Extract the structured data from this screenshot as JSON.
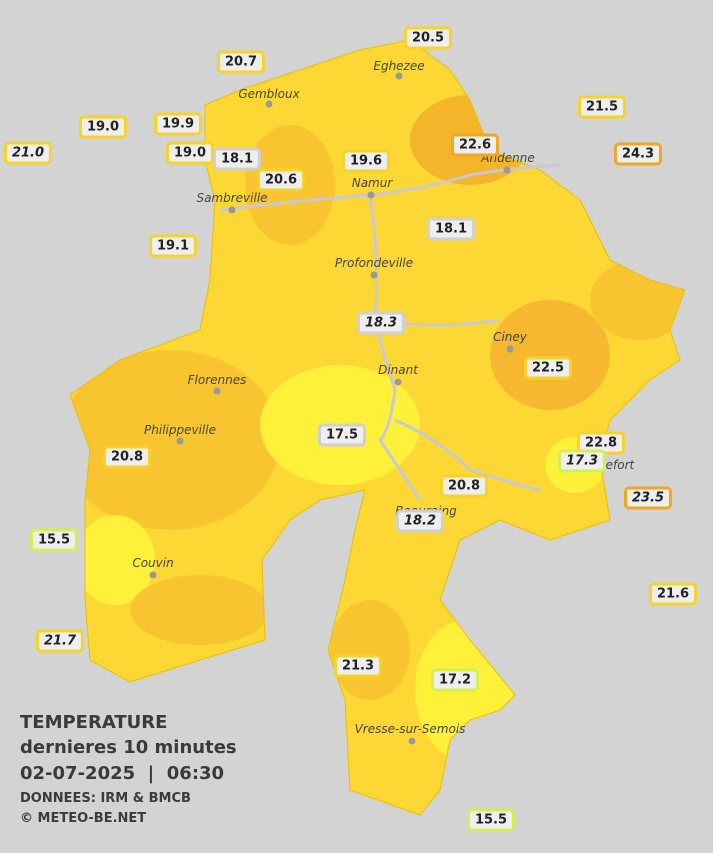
{
  "stations": [
    "20.5",
    "20.7",
    "21.5",
    "19.0",
    "19.9",
    "21.0",
    "19.0",
    "18.1",
    "22.6",
    "24.3",
    "19.6",
    "20.6",
    "18.1",
    "19.1",
    "18.3",
    "22.5",
    "17.5",
    "22.8",
    "17.3",
    "20.8",
    "20.8",
    "23.5",
    "18.2",
    "15.5",
    "21.6",
    "21.7",
    "21.3",
    "17.2",
    "15.5"
  ],
  "cities": [
    "Eghezee",
    "Gembloux",
    "Andenne",
    "Namur",
    "Sambreville",
    "Profondeville",
    "Ciney",
    "Dinant",
    "Florennes",
    "Philippeville",
    "Rochefort",
    "Beauraing",
    "Couvin",
    "Vresse-sur-Semois"
  ],
  "legend": {
    "title": "TEMPERATURE",
    "subtitle": "dernieres 10 minutes",
    "datetime": "02-07-2025  |  06:30",
    "source": "DONNEES: IRM & BMCB",
    "credit": "© METEO-BE.NET"
  }
}
